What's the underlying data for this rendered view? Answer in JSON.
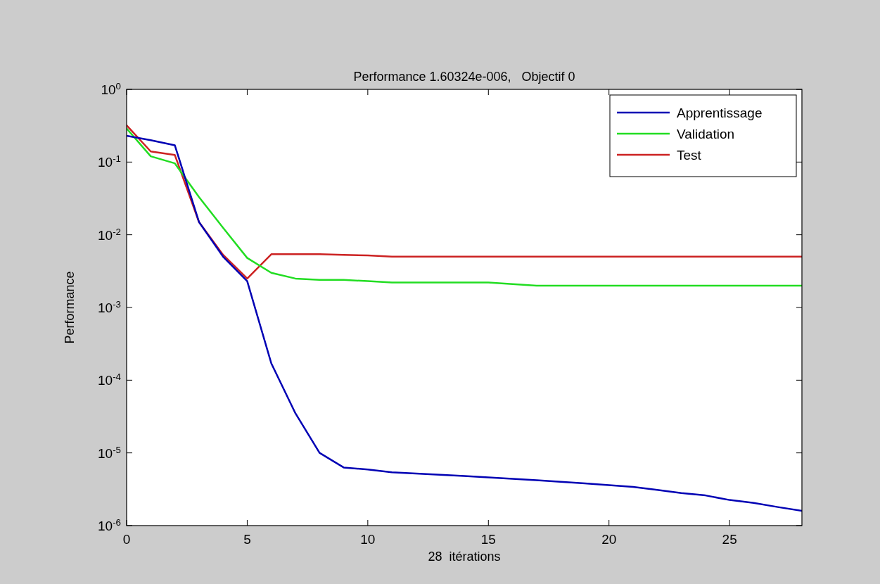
{
  "chart_data": {
    "type": "line",
    "title": "Performance 1.60324e-006,   Objectif 0",
    "xlabel": "28  itérations",
    "ylabel": "Performance",
    "x": [
      0,
      1,
      2,
      3,
      4,
      5,
      6,
      7,
      8,
      9,
      10,
      11,
      12,
      13,
      14,
      15,
      16,
      17,
      18,
      19,
      20,
      21,
      22,
      23,
      24,
      25,
      26,
      27,
      28
    ],
    "series": [
      {
        "name": "Apprentissage",
        "color": "#0000b4",
        "values": [
          0.23,
          0.2,
          0.17,
          0.015,
          0.005,
          0.0023,
          0.00017,
          3.5e-05,
          1e-05,
          6.3e-06,
          5.9e-06,
          5.4e-06,
          5.2e-06,
          5e-06,
          4.8e-06,
          4.6e-06,
          4.4e-06,
          4.2e-06,
          4e-06,
          3.8e-06,
          3.6e-06,
          3.4e-06,
          3.1e-06,
          2.8e-06,
          2.6e-06,
          2.25e-06,
          2.05e-06,
          1.8e-06,
          1.6e-06
        ]
      },
      {
        "name": "Validation",
        "color": "#22dd22",
        "values": [
          0.29,
          0.12,
          0.096,
          0.033,
          0.0125,
          0.0048,
          0.003,
          0.0025,
          0.0024,
          0.0024,
          0.0023,
          0.0022,
          0.0022,
          0.0022,
          0.0022,
          0.0022,
          0.0021,
          0.002,
          0.002,
          0.002,
          0.002,
          0.002,
          0.002,
          0.002,
          0.002,
          0.002,
          0.002,
          0.002,
          0.002
        ]
      },
      {
        "name": "Test",
        "color": "#cc2222",
        "values": [
          0.32,
          0.14,
          0.125,
          0.015,
          0.0053,
          0.0025,
          0.0054,
          0.0054,
          0.0054,
          0.0053,
          0.0052,
          0.005,
          0.005,
          0.005,
          0.005,
          0.005,
          0.005,
          0.005,
          0.005,
          0.005,
          0.005,
          0.005,
          0.005,
          0.005,
          0.005,
          0.005,
          0.005,
          0.005,
          0.005
        ]
      }
    ],
    "log": "y",
    "xlim": [
      0,
      28
    ],
    "ylim": [
      1e-06,
      1
    ],
    "xticks": [
      0,
      5,
      10,
      15,
      20,
      25
    ],
    "yticks": [
      {
        "value": 1e-06,
        "label": "10$^{-6}$"
      },
      {
        "value": 1e-05,
        "label": "10$^{-5}$"
      },
      {
        "value": 0.0001,
        "label": "10$^{-4}$"
      },
      {
        "value": 0.001,
        "label": "10$^{-3}$"
      },
      {
        "value": 0.01,
        "label": "10$^{-2}$"
      },
      {
        "value": 0.1,
        "label": "10$^{-1}$"
      },
      {
        "value": 1,
        "label": "10$^{0}$"
      }
    ],
    "legend": "top right",
    "marker": "none",
    "line_style": "solid"
  }
}
